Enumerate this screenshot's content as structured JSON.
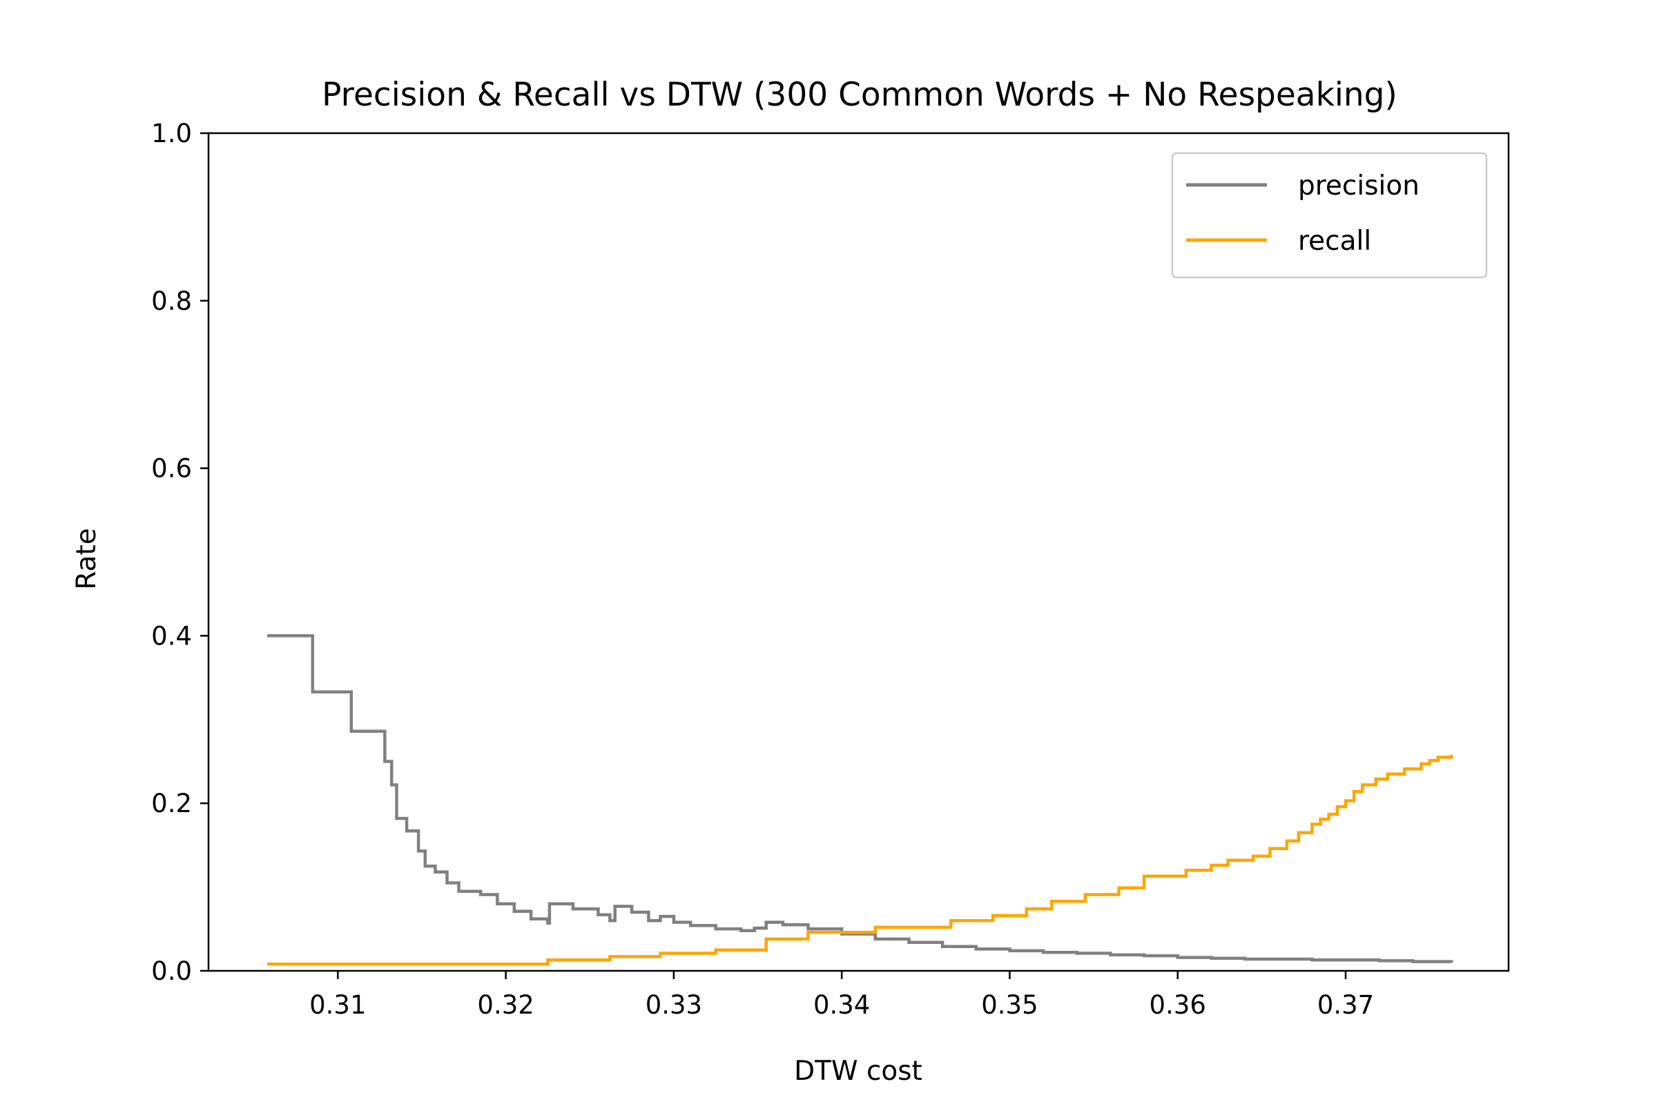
{
  "chart_data": {
    "type": "line",
    "title": "Precision & Recall vs DTW  (300 Common Words + No Respeaking)",
    "xlabel": "DTW cost",
    "ylabel": "Rate",
    "xlim": [
      0.3023,
      0.3797
    ],
    "ylim": [
      0.0,
      1.0
    ],
    "xticks": [
      0.31,
      0.32,
      0.33,
      0.34,
      0.35,
      0.36,
      0.37
    ],
    "xtick_labels": [
      "0.31",
      "0.32",
      "0.33",
      "0.34",
      "0.35",
      "0.36",
      "0.37"
    ],
    "yticks": [
      0.0,
      0.2,
      0.4,
      0.6,
      0.8,
      1.0
    ],
    "ytick_labels": [
      "0.0",
      "0.2",
      "0.4",
      "0.6",
      "0.8",
      "1.0"
    ],
    "grid": false,
    "legend_position": "upper right",
    "series": [
      {
        "name": "precision",
        "color": "#808080",
        "step": true,
        "x": [
          0.3058,
          0.3085,
          0.3108,
          0.3128,
          0.3132,
          0.3135,
          0.3141,
          0.3148,
          0.3152,
          0.3158,
          0.3165,
          0.3172,
          0.3185,
          0.3195,
          0.3205,
          0.3215,
          0.3225,
          0.3226,
          0.324,
          0.3255,
          0.3262,
          0.3265,
          0.3275,
          0.3285,
          0.3292,
          0.33,
          0.331,
          0.3325,
          0.334,
          0.3348,
          0.3355,
          0.3365,
          0.338,
          0.34,
          0.342,
          0.344,
          0.346,
          0.348,
          0.35,
          0.352,
          0.354,
          0.356,
          0.358,
          0.36,
          0.362,
          0.364,
          0.366,
          0.368,
          0.37,
          0.372,
          0.374,
          0.3763
        ],
        "values": [
          0.4,
          0.333,
          0.286,
          0.25,
          0.222,
          0.182,
          0.167,
          0.143,
          0.125,
          0.118,
          0.105,
          0.095,
          0.091,
          0.08,
          0.071,
          0.062,
          0.057,
          0.08,
          0.074,
          0.067,
          0.06,
          0.077,
          0.07,
          0.06,
          0.065,
          0.058,
          0.054,
          0.05,
          0.048,
          0.051,
          0.058,
          0.055,
          0.05,
          0.044,
          0.038,
          0.034,
          0.029,
          0.026,
          0.024,
          0.022,
          0.021,
          0.019,
          0.018,
          0.016,
          0.015,
          0.014,
          0.014,
          0.013,
          0.013,
          0.012,
          0.011,
          0.01
        ]
      },
      {
        "name": "recall",
        "color": "#ffa500",
        "step": true,
        "x": [
          0.3058,
          0.3225,
          0.3262,
          0.3292,
          0.3325,
          0.3355,
          0.338,
          0.342,
          0.3465,
          0.349,
          0.351,
          0.3525,
          0.3545,
          0.3565,
          0.358,
          0.3605,
          0.362,
          0.363,
          0.3645,
          0.3655,
          0.3665,
          0.3672,
          0.368,
          0.3685,
          0.369,
          0.3695,
          0.37,
          0.3705,
          0.371,
          0.3718,
          0.3725,
          0.3735,
          0.3745,
          0.375,
          0.3755,
          0.3763
        ],
        "values": [
          0.008,
          0.013,
          0.017,
          0.021,
          0.025,
          0.038,
          0.046,
          0.052,
          0.06,
          0.066,
          0.074,
          0.083,
          0.091,
          0.099,
          0.113,
          0.12,
          0.126,
          0.132,
          0.137,
          0.146,
          0.155,
          0.165,
          0.175,
          0.181,
          0.187,
          0.196,
          0.203,
          0.214,
          0.222,
          0.229,
          0.235,
          0.241,
          0.247,
          0.251,
          0.255,
          0.258
        ]
      }
    ]
  }
}
